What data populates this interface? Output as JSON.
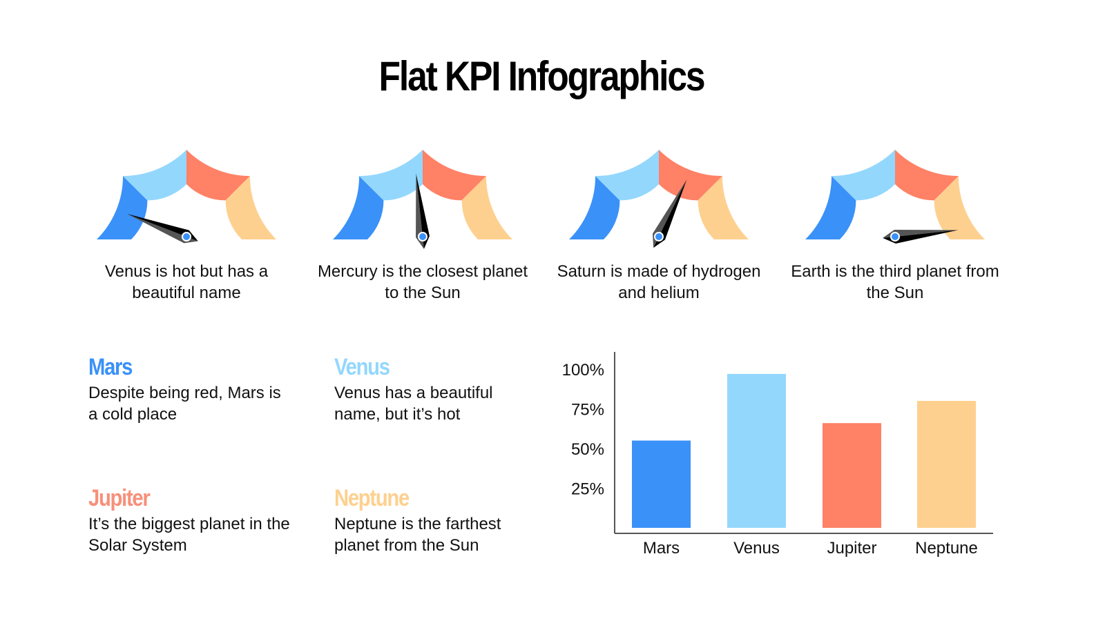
{
  "title": "Flat KPI Infographics",
  "colors": {
    "blue": "#3a91f8",
    "light_blue": "#93d7fd",
    "red": "#ff8166",
    "yellow": "#fed08f",
    "needle_dark": "#000000",
    "needle_light": "#555555"
  },
  "gauges": [
    {
      "caption": "Venus is hot but has a beautiful name",
      "needle_angle_deg": 159
    },
    {
      "caption": "Mercury is the closest planet to the Sun",
      "needle_angle_deg": 96
    },
    {
      "caption": "Saturn is made of hydrogen and helium",
      "needle_angle_deg": 64
    },
    {
      "caption": "Earth is the third planet from the Sun",
      "needle_angle_deg": 6
    }
  ],
  "planets": [
    {
      "name": "Mars",
      "description": "Despite being red, Mars is a cold place",
      "color": "#3a91f8"
    },
    {
      "name": "Venus",
      "description": "Venus has a beautiful name, but it’s hot",
      "color": "#93d7fd"
    },
    {
      "name": "Jupiter",
      "description": "It’s the biggest planet in the Solar System",
      "color": "#f7907a"
    },
    {
      "name": "Neptune",
      "description": "Neptune is the farthest planet from the Sun",
      "color": "#fed08f"
    }
  ],
  "chart_data": {
    "type": "bar",
    "title": "",
    "categories": [
      "Mars",
      "Venus",
      "Jupiter",
      "Neptune"
    ],
    "values": [
      55,
      97,
      66,
      80
    ],
    "colors": [
      "#3a91f8",
      "#93d7fd",
      "#ff8166",
      "#fed08f"
    ],
    "ytick_labels": [
      "100%",
      "75%",
      "50%",
      "25%"
    ],
    "yticks": [
      100,
      75,
      50,
      25
    ],
    "xlabel": "",
    "ylabel": "",
    "ylim": [
      0,
      100
    ],
    "grid": false,
    "legend": "none"
  }
}
